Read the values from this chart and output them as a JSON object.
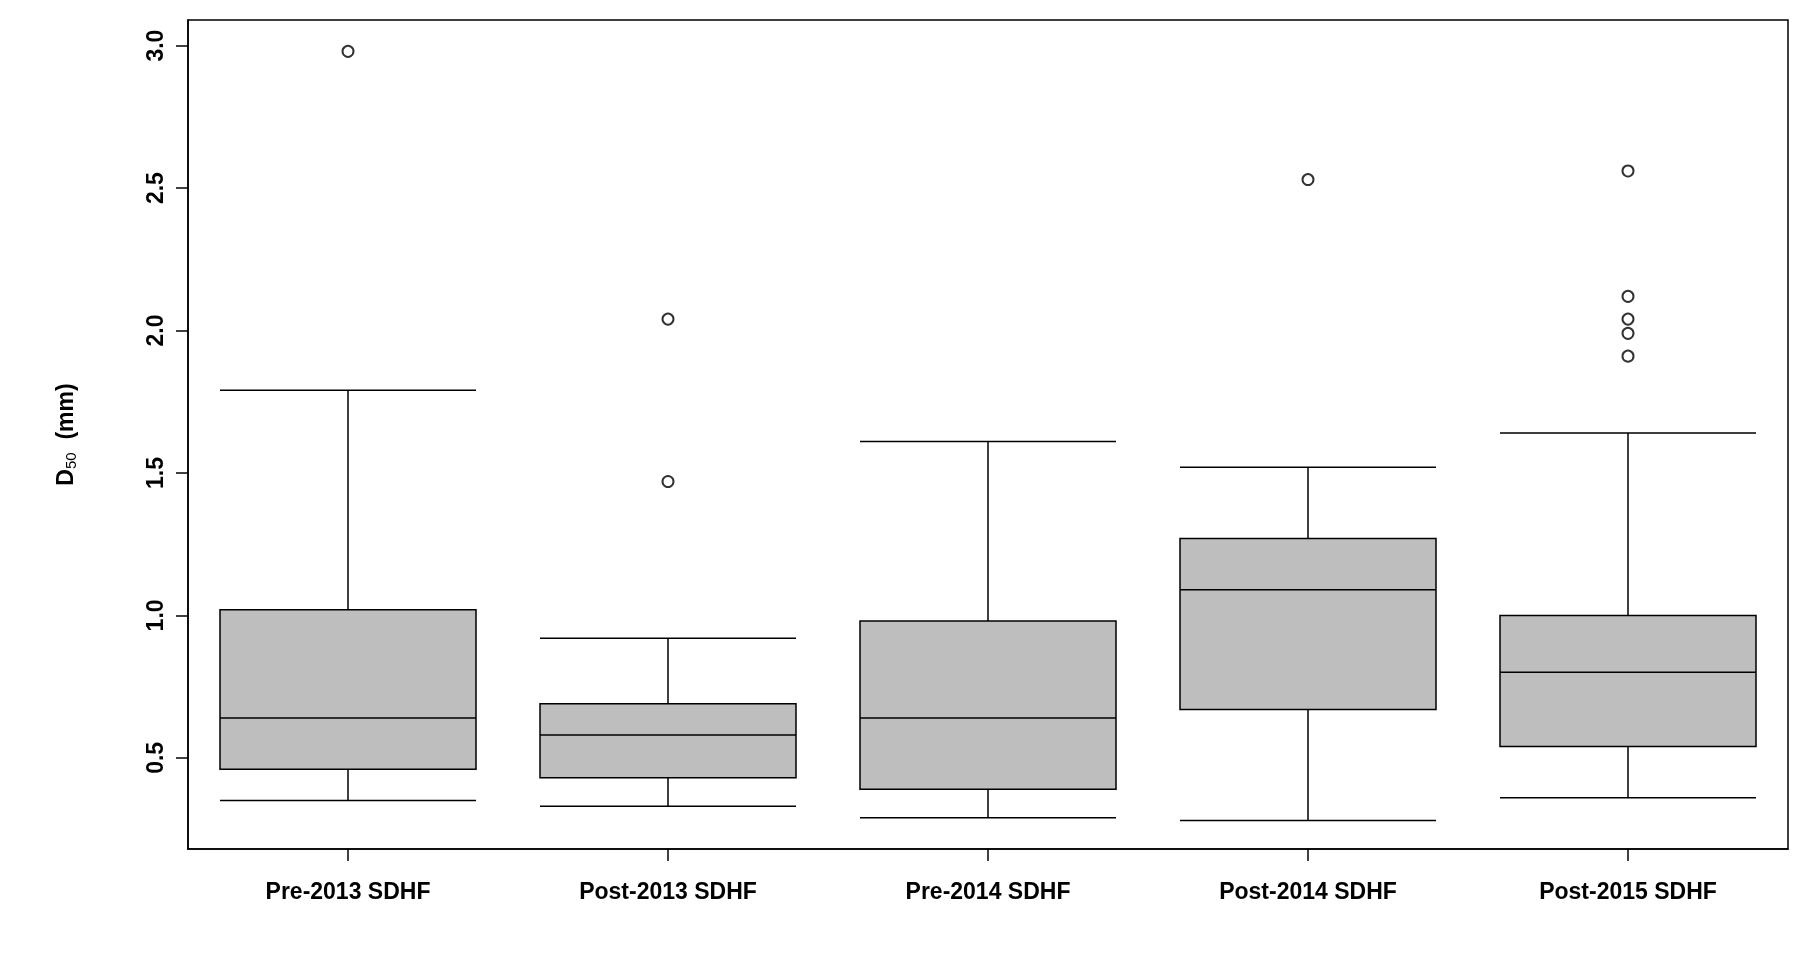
{
  "chart_data": {
    "type": "box",
    "ylabel": "D$_{50}$  (mm)",
    "categories": [
      "Pre-2013 SDHF",
      "Post-2013 SDHF",
      "Pre-2014 SDHF",
      "Post-2014 SDHF",
      "Post-2015 SDHF"
    ],
    "color": "#bebebe",
    "boxes": [
      {
        "low": 0.35,
        "q1": 0.46,
        "median": 0.64,
        "q3": 1.02,
        "high": 1.79,
        "outliers": [
          2.98
        ]
      },
      {
        "low": 0.33,
        "q1": 0.43,
        "median": 0.58,
        "q3": 0.69,
        "high": 0.92,
        "outliers": [
          2.04,
          1.47
        ]
      },
      {
        "low": 0.29,
        "q1": 0.39,
        "median": 0.64,
        "q3": 0.98,
        "high": 1.61
      },
      {
        "low": 0.28,
        "q1": 0.67,
        "median": 1.09,
        "q3": 1.27,
        "high": 1.52,
        "outliers": [
          2.53
        ]
      },
      {
        "low": 0.36,
        "q1": 0.54,
        "median": 0.8,
        "q3": 1.0,
        "high": 1.64,
        "outliers": [
          2.56,
          2.12,
          2.04,
          1.99,
          1.91
        ]
      }
    ],
    "ylim": [
      0.18,
      3.09
    ],
    "yticks": [
      0.5,
      {
        "value": 1,
        "label": "1.0"
      },
      1.5,
      {
        "value": 2,
        "label": "2.0"
      },
      2.5,
      {
        "value": 3,
        "label": "3.0"
      }
    ],
    "grid": false,
    "legend": false,
    "marker": "circle"
  }
}
